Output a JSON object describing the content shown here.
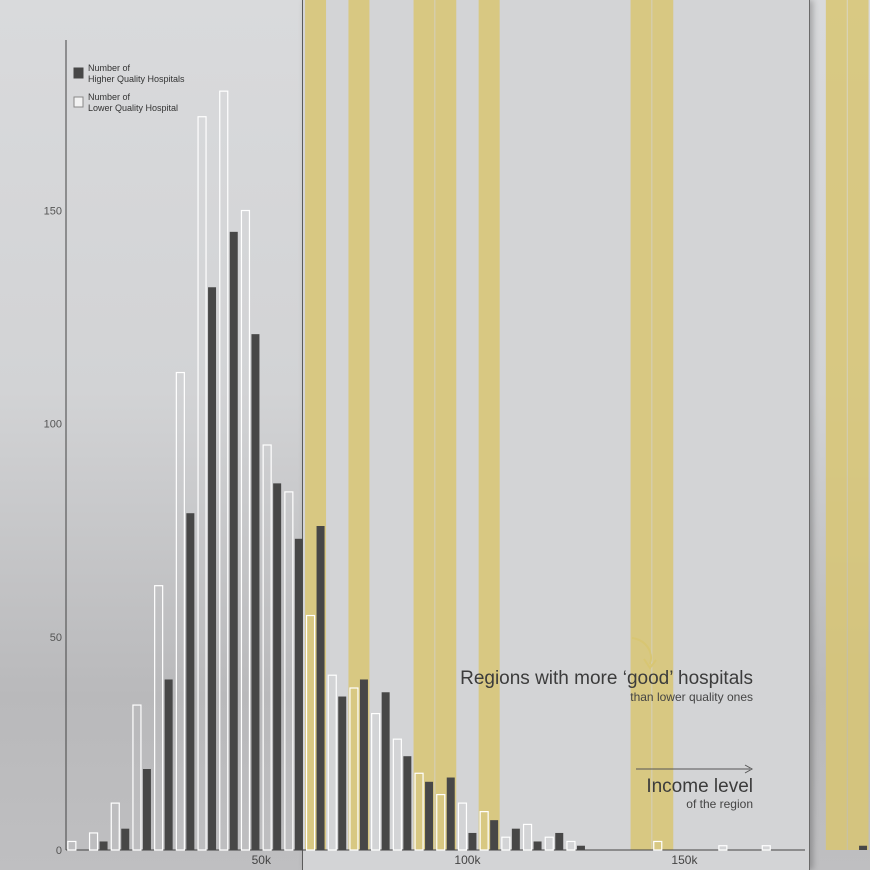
{
  "chart_data": {
    "type": "bar",
    "x_unit": "income level",
    "x": [
      1,
      2,
      3,
      4,
      5,
      6,
      7,
      8,
      9,
      10,
      11,
      12,
      13,
      14,
      15,
      16,
      17,
      18,
      19,
      20,
      21,
      22,
      23,
      24,
      25,
      26,
      27,
      28,
      29,
      30,
      31,
      32,
      33,
      34,
      35,
      36,
      37,
      38
    ],
    "series": [
      {
        "name": "Number of Higher Quality Hospitals",
        "color": "#474747",
        "values": [
          0,
          2,
          5,
          19,
          40,
          79,
          132,
          145,
          121,
          86,
          73,
          76,
          36,
          40,
          37,
          22,
          16,
          17,
          4,
          7,
          5,
          2,
          4,
          1,
          0,
          0,
          0,
          0,
          0,
          0,
          0,
          0,
          0,
          0,
          0,
          0,
          1,
          1
        ]
      },
      {
        "name": "Number of Lower Quality Hospital",
        "color": "#ffffff",
        "values": [
          2,
          4,
          11,
          34,
          62,
          112,
          172,
          178,
          150,
          95,
          84,
          55,
          41,
          38,
          32,
          26,
          18,
          13,
          11,
          9,
          3,
          6,
          3,
          2,
          0,
          0,
          0,
          2,
          0,
          0,
          1,
          0,
          1,
          0,
          0,
          0,
          0,
          0
        ]
      }
    ],
    "x_ticks": [
      {
        "label": "50k",
        "value": 9.5
      },
      {
        "label": "100k",
        "value": 19
      },
      {
        "label": "150k",
        "value": 29
      }
    ],
    "y_ticks": [
      0,
      50,
      100,
      150
    ],
    "ylim": [
      0,
      190
    ],
    "xlim": [
      0,
      38.5
    ],
    "highlight_bins": [
      12,
      14,
      17,
      18,
      20,
      27,
      28,
      36,
      37
    ],
    "highlight_color": "#d8c673",
    "grid": false,
    "legend_placement": "top-left",
    "title": "",
    "xlabel": "",
    "ylabel": ""
  },
  "annotations": {
    "good_regions_main": "Regions with more ‘good’ hospitals",
    "good_regions_sub": "than lower quality ones",
    "income_main": "Income level",
    "income_sub": "of the region"
  }
}
